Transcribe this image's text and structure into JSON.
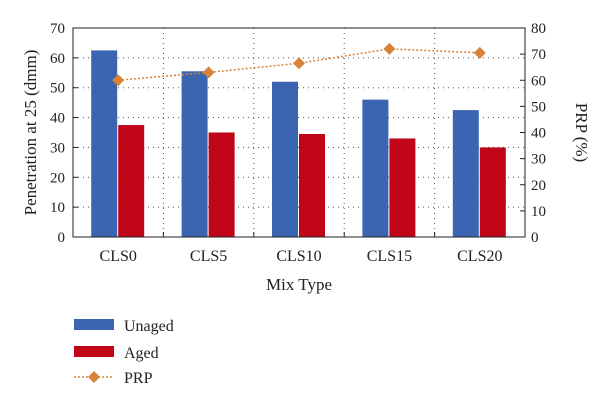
{
  "chart_data": {
    "type": "bar",
    "title": "",
    "xlabel": "Mix Type",
    "ylabel": "Penetration at 25 (dmm)",
    "y2label": "PRP (%)",
    "ylim": [
      0,
      70
    ],
    "y2lim": [
      0,
      80
    ],
    "yticks": [
      0,
      10,
      20,
      30,
      40,
      50,
      60,
      70
    ],
    "y2ticks": [
      0,
      10,
      20,
      30,
      40,
      50,
      60,
      70,
      80
    ],
    "categories": [
      "CLS0",
      "CLS5",
      "CLS10",
      "CLS15",
      "CLS20"
    ],
    "series": [
      {
        "name": "Unaged",
        "type": "bar",
        "axis": "left",
        "color": "#3b65b0",
        "values": [
          62.5,
          55.5,
          52,
          46,
          42.5
        ]
      },
      {
        "name": "Aged",
        "type": "bar",
        "axis": "left",
        "color": "#c00518",
        "values": [
          37.5,
          35,
          34.5,
          33,
          30
        ]
      },
      {
        "name": "PRP",
        "type": "line",
        "axis": "right",
        "color": "#d8833b",
        "marker": "diamond",
        "line_style": "dotted",
        "values": [
          60,
          63,
          66.5,
          72,
          70.5
        ]
      }
    ],
    "grid": true,
    "legend_position": "bottom-left"
  }
}
